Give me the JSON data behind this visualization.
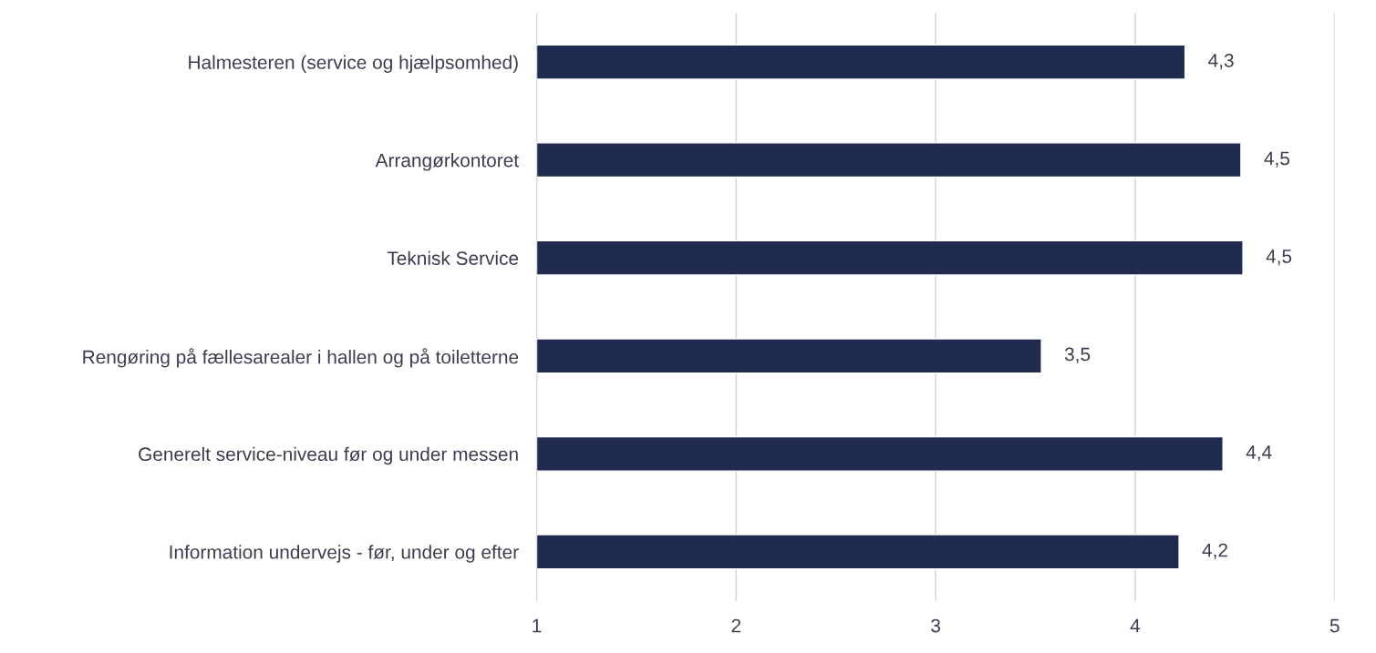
{
  "chart_data": {
    "type": "bar",
    "orientation": "horizontal",
    "categories": [
      "Halmesteren (service og hjælpsomhed)",
      "Arrangørkontoret",
      "Teknisk Service",
      "Rengøring på fællesarealer i hallen og på toiletterne",
      "Generelt service-niveau før og under messen",
      "Information undervejs - før, under og efter"
    ],
    "values": [
      4.25,
      4.53,
      4.54,
      3.53,
      4.44,
      4.22
    ],
    "value_labels": [
      "4,3",
      "4,5",
      "4,5",
      "3,5",
      "4,4",
      "4,2"
    ],
    "color": "#212b4f",
    "xlim": [
      1,
      5
    ],
    "xticks": [
      1,
      2,
      3,
      4,
      5
    ],
    "grid": "x"
  }
}
